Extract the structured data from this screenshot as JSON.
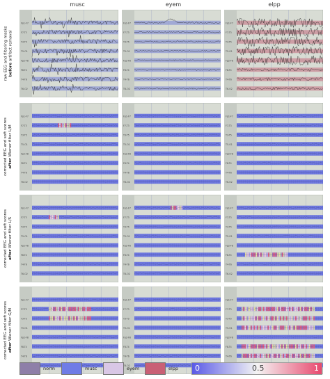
{
  "columns": [
    "musc",
    "eyem",
    "elpp"
  ],
  "rows": [
    {
      "label_pre": "raw EEG and filtering masks",
      "label_bold": "before",
      "label_post": "artifact removal",
      "kind": "raw"
    },
    {
      "label_pre": "corrected EEG and soft scores",
      "label_bold": "after",
      "label_post": "Wiener filter L/M",
      "kind": "corrected"
    },
    {
      "label_pre": "corrected EEG and soft scores",
      "label_bold": "after",
      "label_post": "Wiener filter L/S",
      "kind": "corrected"
    },
    {
      "label_pre": "corrected EEG and soft scores",
      "label_bold": "after",
      "label_post": "Wiener filter G/M",
      "kind": "corrected"
    }
  ],
  "channel_labels": [
    "Fp1-F7",
    "F7-T3",
    "T3-T5",
    "T5-O1",
    "Fp2-F8",
    "F8-T4",
    "T4-T6",
    "T6-O2"
  ],
  "legend": [
    {
      "label": "norm",
      "color": "#8e7fa8"
    },
    {
      "label": "musc",
      "color": "#6f7ce6"
    },
    {
      "label": "eyem",
      "color": "#d9c7e6"
    },
    {
      "label": "elpp",
      "color": "#c96075"
    }
  ],
  "colorbar": {
    "min_label": "0",
    "mid_label": "0.5",
    "max_label": "1",
    "low_color": "#5a5ae6",
    "mid_color": "#f4f4f4",
    "high_color": "#e8496e"
  },
  "colors": {
    "panel_bg": "#d8dcd4",
    "raw_band_blue": "#8f98d6",
    "raw_band_red": "#c98a95",
    "signal": "#1a1a1a",
    "soft_blue": "#5c66dc",
    "soft_red": "#e06080"
  }
}
